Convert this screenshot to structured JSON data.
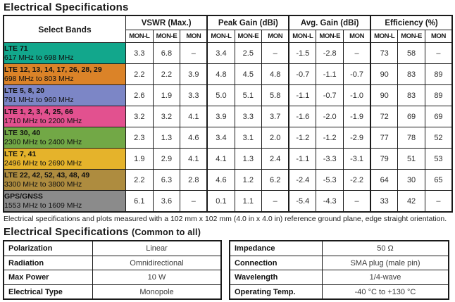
{
  "page": {
    "title1": "Electrical Specifications",
    "title2_main": "Electrical Specifications",
    "title2_suffix": "(Common to all)",
    "footnote": "Electrical specifications and plots measured with a 102 mm x 102 mm (4.0 in x 4.0 in) reference ground plane, edge straight orientation."
  },
  "spec_table": {
    "row_header": "Select Bands",
    "groups": [
      {
        "label": "VSWR (Max.)"
      },
      {
        "label": "Peak Gain (dBi)"
      },
      {
        "label": "Avg. Gain (dBi)"
      },
      {
        "label": "Efficiency (%)"
      }
    ],
    "subcolumns": [
      "MON-L",
      "MON-E",
      "MON"
    ],
    "rows": [
      {
        "band": "LTE 71",
        "range": "617 MHz to 698 MHz",
        "color": "#12A78C",
        "values": [
          "3.3",
          "6.8",
          "–",
          "3.4",
          "2.5",
          "–",
          "-1.5",
          "-2.8",
          "–",
          "73",
          "58",
          "–"
        ]
      },
      {
        "band": "LTE 12, 13, 14, 17, 26, 28, 29",
        "range": "698 MHz to 803 MHz",
        "color": "#DB8328",
        "values": [
          "2.2",
          "2.2",
          "3.9",
          "4.8",
          "4.5",
          "4.8",
          "-0.7",
          "-1.1",
          "-0.7",
          "90",
          "83",
          "89"
        ]
      },
      {
        "band": "LTE 5, 8, 20",
        "range": "791 MHz to 960 MHz",
        "color": "#7C86C6",
        "values": [
          "2.6",
          "1.9",
          "3.3",
          "5.0",
          "5.1",
          "5.8",
          "-1.1",
          "-0.7",
          "-1.0",
          "90",
          "83",
          "89"
        ]
      },
      {
        "band": "LTE 1, 2, 3, 4, 25, 66",
        "range": "1710 MHz to 2200 MHz",
        "color": "#E2518F",
        "values": [
          "3.2",
          "3.2",
          "4.1",
          "3.9",
          "3.3",
          "3.7",
          "-1.6",
          "-2.0",
          "-1.9",
          "72",
          "69",
          "69"
        ]
      },
      {
        "band": "LTE 30, 40",
        "range": "2300 MHz to 2400 MHz",
        "color": "#72A846",
        "values": [
          "2.3",
          "1.3",
          "4.6",
          "3.4",
          "3.1",
          "2.0",
          "-1.2",
          "-1.2",
          "-2.9",
          "77",
          "78",
          "52"
        ]
      },
      {
        "band": "LTE 7, 41",
        "range": "2496 MHz to 2690 MHz",
        "color": "#E5B32B",
        "values": [
          "1.9",
          "2.9",
          "4.1",
          "4.1",
          "1.3",
          "2.4",
          "-1.1",
          "-3.3",
          "-3.1",
          "79",
          "51",
          "53"
        ]
      },
      {
        "band": "LTE 22, 42, 52, 43, 48, 49",
        "range": "3300 MHz to 3800 MHz",
        "color": "#AE8C3F",
        "values": [
          "2.2",
          "6.3",
          "2.8",
          "4.6",
          "1.2",
          "6.2",
          "-2.4",
          "-5.3",
          "-2.2",
          "64",
          "30",
          "65"
        ]
      },
      {
        "band": "GPS/GNSS",
        "range": "1553 MHz to 1609 MHz",
        "color": "#8B8B8B",
        "values": [
          "6.1",
          "3.6",
          "–",
          "0.1",
          "1.1",
          "–",
          "-5.4",
          "-4.3",
          "–",
          "33",
          "42",
          "–"
        ]
      }
    ]
  },
  "common_tables": {
    "left": {
      "rows": [
        {
          "label": "Polarization",
          "value": "Linear"
        },
        {
          "label": "Radiation",
          "value": "Omnidirectional"
        },
        {
          "label": "Max Power",
          "value": "10 W"
        },
        {
          "label": "Electrical Type",
          "value": "Monopole"
        }
      ]
    },
    "right": {
      "rows": [
        {
          "label": "Impedance",
          "value": "50 Ω"
        },
        {
          "label": "Connection",
          "value": "SMA plug (male pin)"
        },
        {
          "label": "Wavelength",
          "value": "1/4-wave"
        },
        {
          "label": "Operating Temp.",
          "value": "-40 °C to +130 °C"
        }
      ]
    }
  }
}
